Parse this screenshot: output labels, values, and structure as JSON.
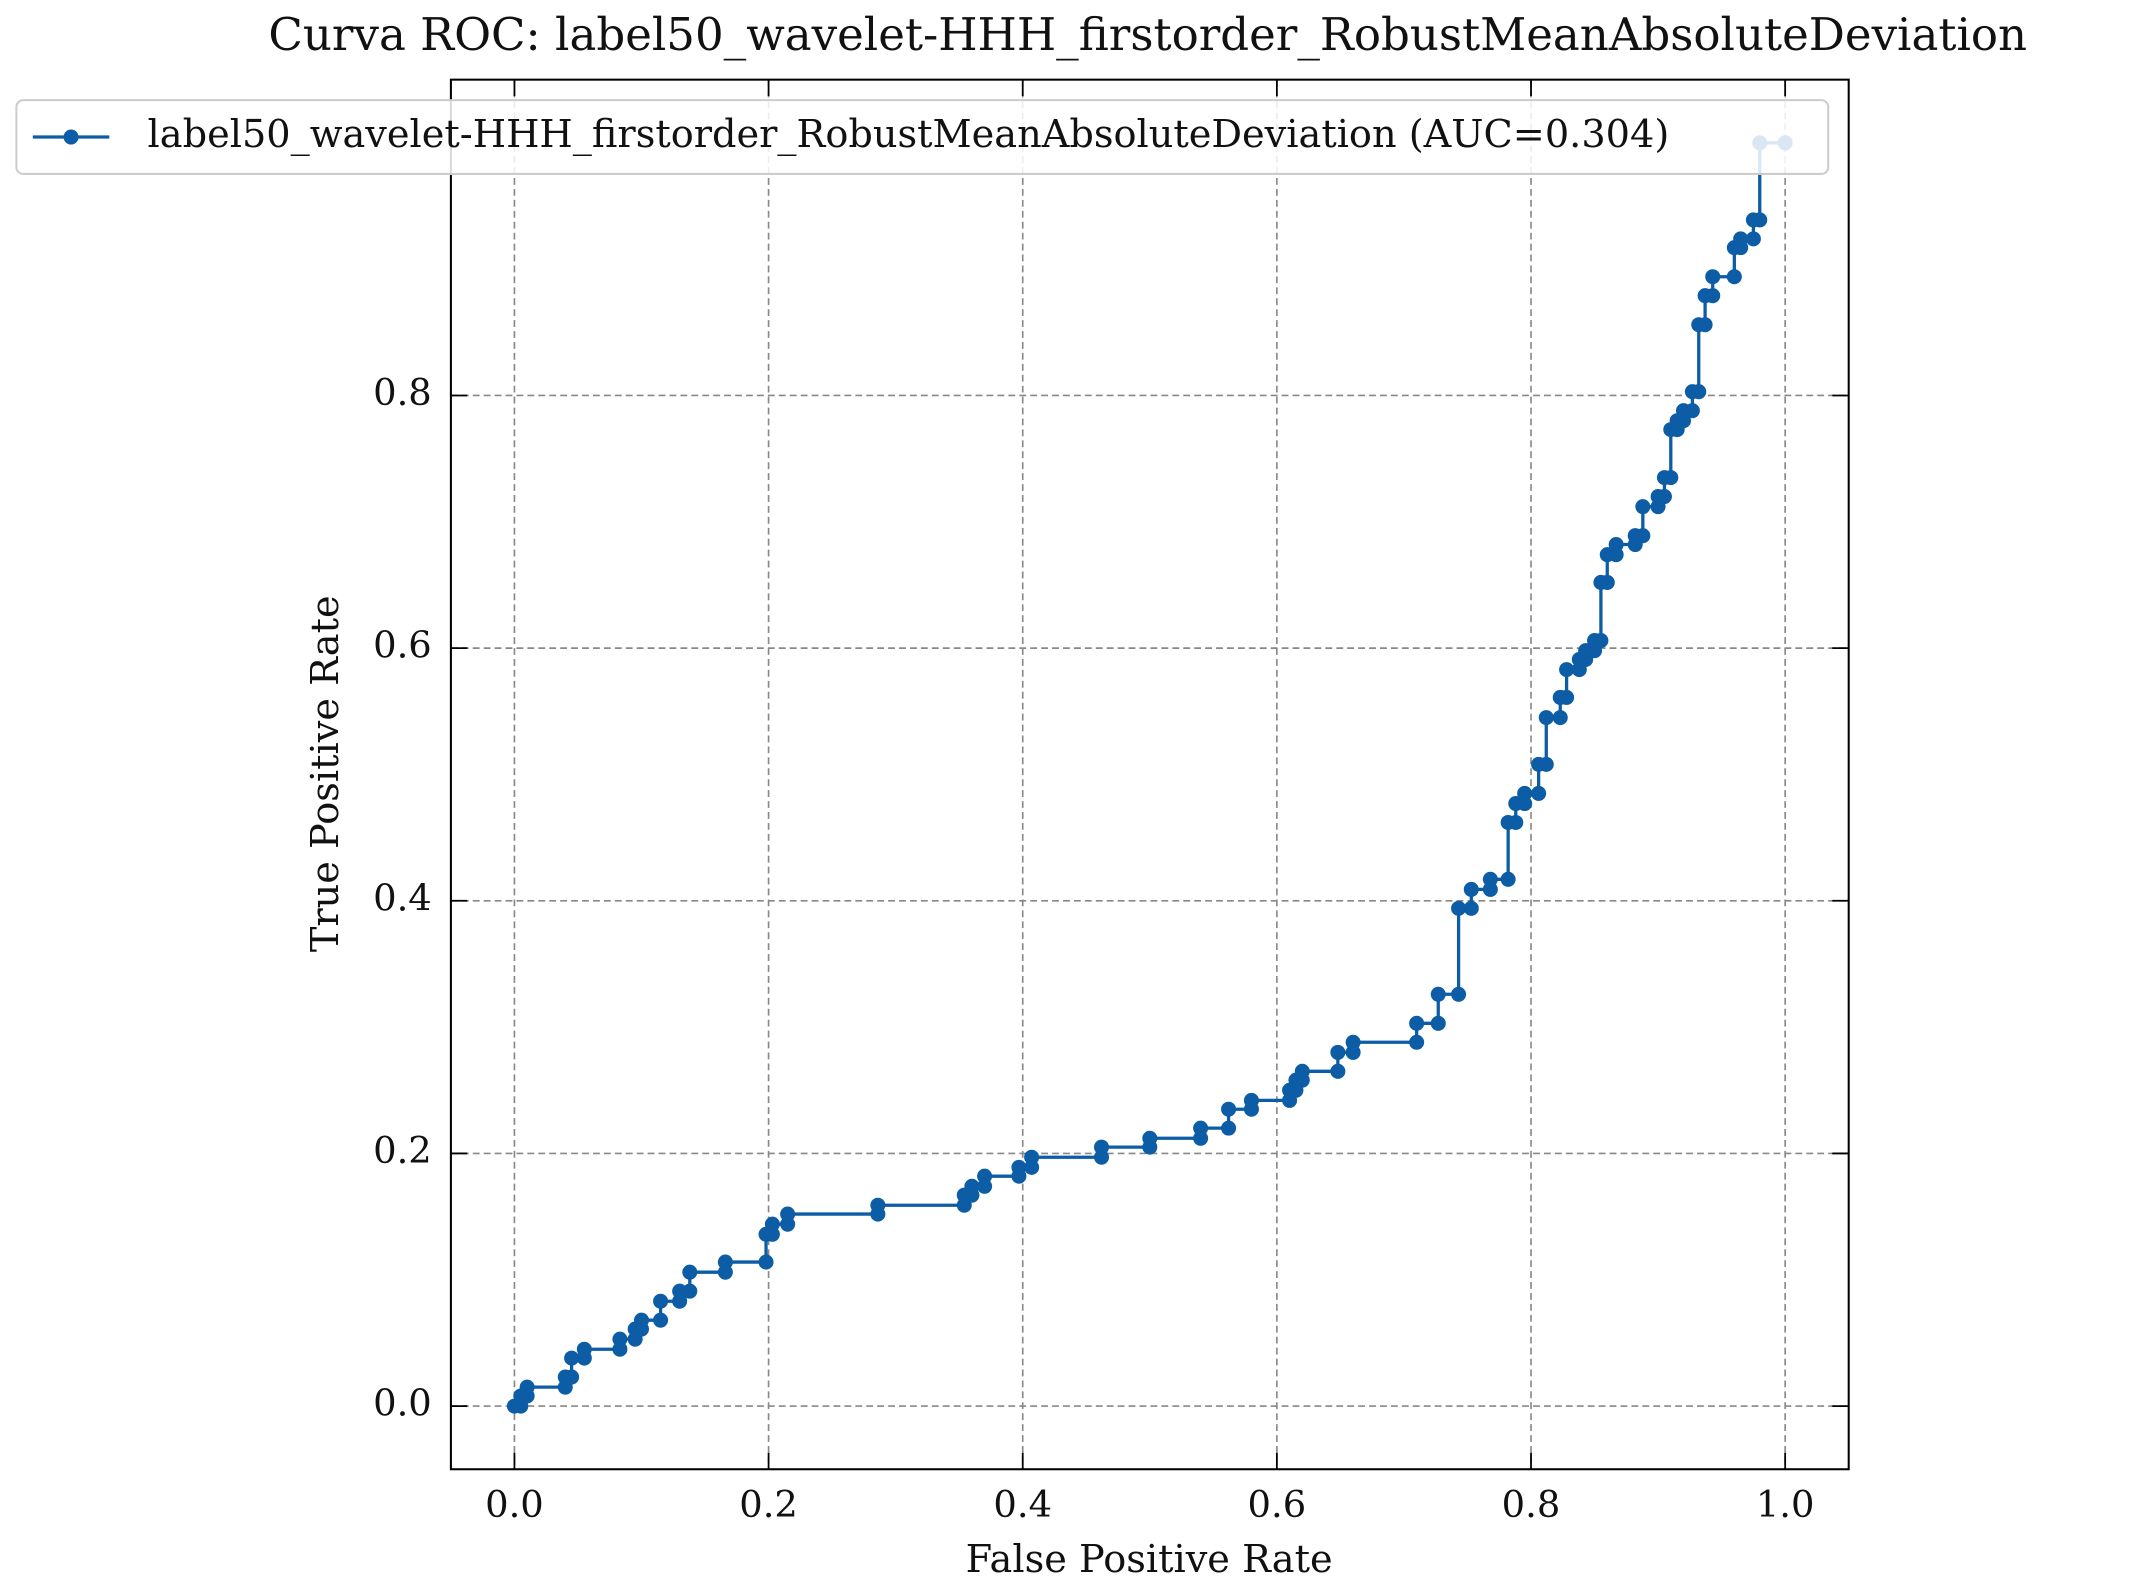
{
  "chart_data": {
    "type": "line",
    "title": "Curva ROC: label50_wavelet-HHH_firstorder_RobustMeanAbsoluteDeviation",
    "x_label": "False Positive Rate",
    "y_label": "True Positive Rate",
    "xlim": [
      -0.05,
      1.05
    ],
    "ylim": [
      -0.05,
      1.05
    ],
    "xticks": [
      {
        "value": 0,
        "label": "0.0"
      },
      {
        "value": 0.2,
        "label": "0.2"
      },
      {
        "value": 0.4,
        "label": "0.4"
      },
      {
        "value": 0.6,
        "label": "0.6"
      },
      {
        "value": 0.8,
        "label": "0.8"
      },
      {
        "value": 1,
        "label": "1.0"
      }
    ],
    "yticks": [
      {
        "value": 0,
        "label": "0.0"
      },
      {
        "value": 0.2,
        "label": "0.2"
      },
      {
        "value": 0.4,
        "label": "0.4"
      },
      {
        "value": 0.6,
        "label": "0.6"
      },
      {
        "value": 0.8,
        "label": "0.8"
      }
    ],
    "grid": true,
    "legend": "upper left",
    "series": [
      {
        "name": "label50_wavelet-HHH_firstorder_RobustMeanAbsoluteDeviation (AUC=0.304)",
        "color": "#0c5da5",
        "x": [
          0,
          0.005,
          0.005,
          0.01,
          0.01,
          0.04,
          0.04,
          0.045,
          0.045,
          0.055,
          0.055,
          0.083,
          0.083,
          0.095,
          0.095,
          0.1,
          0.1,
          0.115,
          0.115,
          0.13,
          0.13,
          0.138,
          0.138,
          0.166,
          0.166,
          0.198,
          0.198,
          0.203,
          0.203,
          0.215,
          0.215,
          0.286,
          0.286,
          0.354,
          0.354,
          0.36,
          0.36,
          0.37,
          0.37,
          0.397,
          0.397,
          0.407,
          0.407,
          0.462,
          0.462,
          0.5,
          0.5,
          0.54,
          0.54,
          0.562,
          0.562,
          0.58,
          0.58,
          0.61,
          0.61,
          0.615,
          0.615,
          0.62,
          0.62,
          0.648,
          0.648,
          0.66,
          0.66,
          0.71,
          0.71,
          0.727,
          0.727,
          0.743,
          0.743,
          0.753,
          0.753,
          0.768,
          0.768,
          0.782,
          0.782,
          0.788,
          0.788,
          0.795,
          0.795,
          0.806,
          0.806,
          0.812,
          0.812,
          0.823,
          0.823,
          0.828,
          0.828,
          0.838,
          0.838,
          0.843,
          0.843,
          0.85,
          0.85,
          0.855,
          0.855,
          0.86,
          0.86,
          0.867,
          0.867,
          0.882,
          0.882,
          0.888,
          0.888,
          0.9,
          0.9,
          0.905,
          0.905,
          0.91,
          0.91,
          0.915,
          0.915,
          0.92,
          0.92,
          0.927,
          0.927,
          0.932,
          0.932,
          0.937,
          0.937,
          0.943,
          0.943,
          0.96,
          0.96,
          0.965,
          0.965,
          0.975,
          0.975,
          0.98,
          0.98,
          1.0
        ],
        "values": [
          0,
          0,
          0.008,
          0.008,
          0.015,
          0.015,
          0.023,
          0.023,
          0.038,
          0.038,
          0.045,
          0.045,
          0.053,
          0.053,
          0.061,
          0.061,
          0.068,
          0.068,
          0.083,
          0.083,
          0.091,
          0.091,
          0.106,
          0.106,
          0.114,
          0.114,
          0.136,
          0.136,
          0.144,
          0.144,
          0.152,
          0.152,
          0.159,
          0.159,
          0.167,
          0.167,
          0.174,
          0.174,
          0.182,
          0.182,
          0.189,
          0.189,
          0.197,
          0.197,
          0.205,
          0.205,
          0.212,
          0.212,
          0.22,
          0.22,
          0.235,
          0.235,
          0.242,
          0.242,
          0.25,
          0.25,
          0.258,
          0.258,
          0.265,
          0.265,
          0.28,
          0.28,
          0.288,
          0.288,
          0.303,
          0.303,
          0.326,
          0.326,
          0.394,
          0.394,
          0.409,
          0.409,
          0.417,
          0.417,
          0.462,
          0.462,
          0.477,
          0.477,
          0.485,
          0.485,
          0.508,
          0.508,
          0.545,
          0.545,
          0.561,
          0.561,
          0.583,
          0.583,
          0.591,
          0.591,
          0.598,
          0.598,
          0.606,
          0.606,
          0.652,
          0.652,
          0.674,
          0.674,
          0.682,
          0.682,
          0.689,
          0.689,
          0.712,
          0.712,
          0.72,
          0.72,
          0.735,
          0.735,
          0.773,
          0.773,
          0.78,
          0.78,
          0.788,
          0.788,
          0.803,
          0.803,
          0.856,
          0.856,
          0.879,
          0.879,
          0.894,
          0.894,
          0.917,
          0.917,
          0.924,
          0.924,
          0.939,
          0.939,
          1.0,
          1.0
        ]
      }
    ]
  }
}
